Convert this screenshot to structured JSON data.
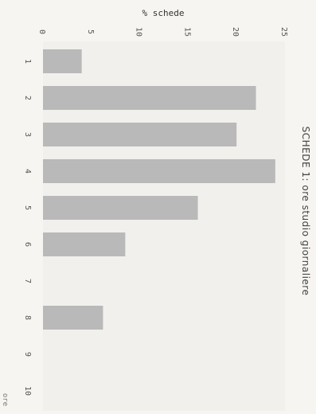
{
  "chart_data": {
    "type": "bar",
    "orientation": "rotated",
    "title": "SCHEDE 1: ore studio giornaliere",
    "ylabel": "% schede",
    "xlabel": "ore",
    "categories": [
      "1",
      "2",
      "3",
      "4",
      "5",
      "6",
      "7",
      "8",
      "9",
      "10"
    ],
    "values": [
      4,
      22,
      20,
      24,
      16,
      8.5,
      0,
      6.2,
      0,
      0
    ],
    "ylim": [
      0,
      25
    ],
    "yticks": [
      0,
      5,
      10,
      15,
      20,
      25
    ],
    "bar_color": "#b9b9b9",
    "grid": false
  }
}
